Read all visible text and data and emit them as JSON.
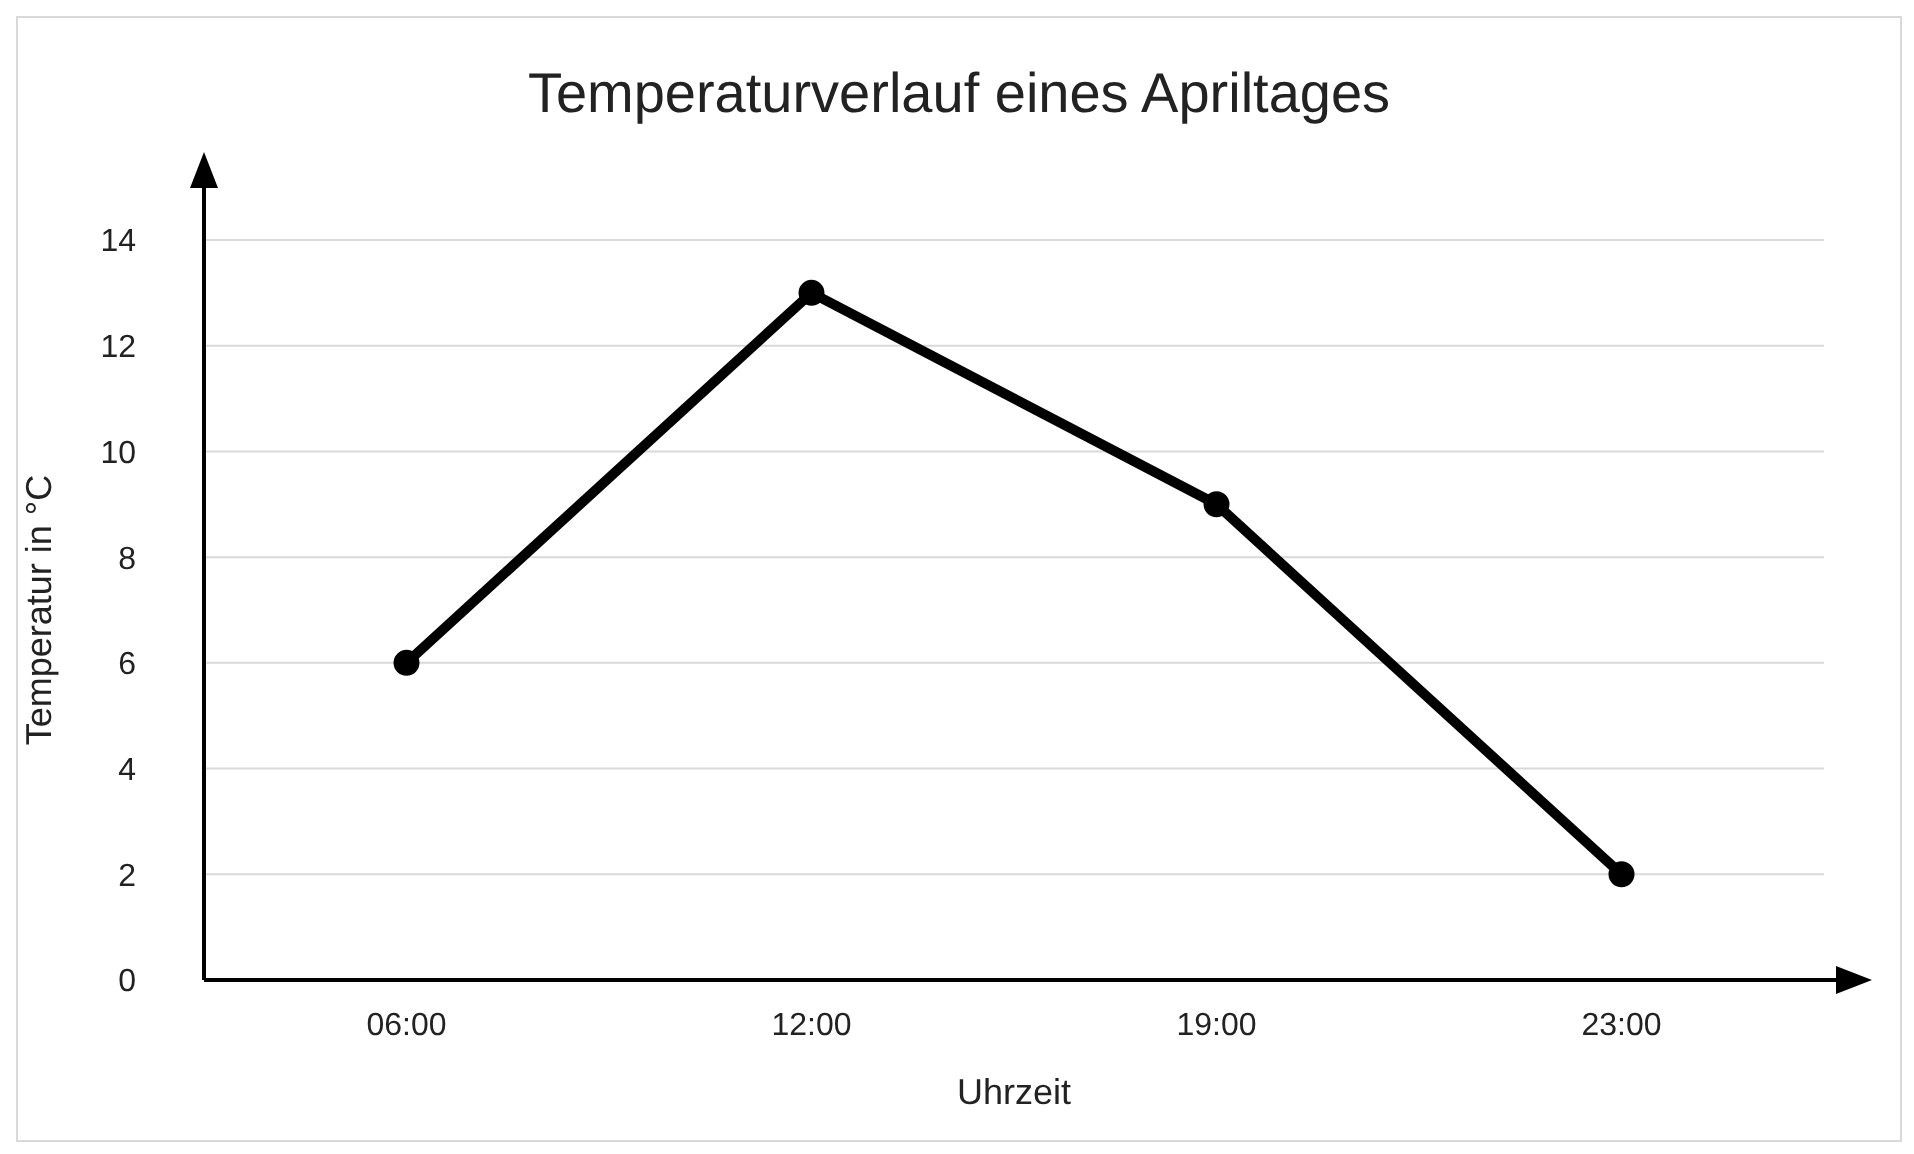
{
  "chart_data": {
    "type": "line",
    "title": "Temperaturverlauf eines Apriltages",
    "xlabel": "Uhrzeit",
    "ylabel": "Temperatur in °C",
    "categories": [
      "06:00",
      "12:00",
      "19:00",
      "23:00"
    ],
    "values": [
      6,
      13,
      9,
      2
    ],
    "color": "#000000",
    "ylim": [
      0,
      14
    ],
    "yticks": [
      0,
      2,
      4,
      6,
      8,
      10,
      12,
      14
    ],
    "grid": "y",
    "marker": "circle",
    "line_style": "solid"
  }
}
